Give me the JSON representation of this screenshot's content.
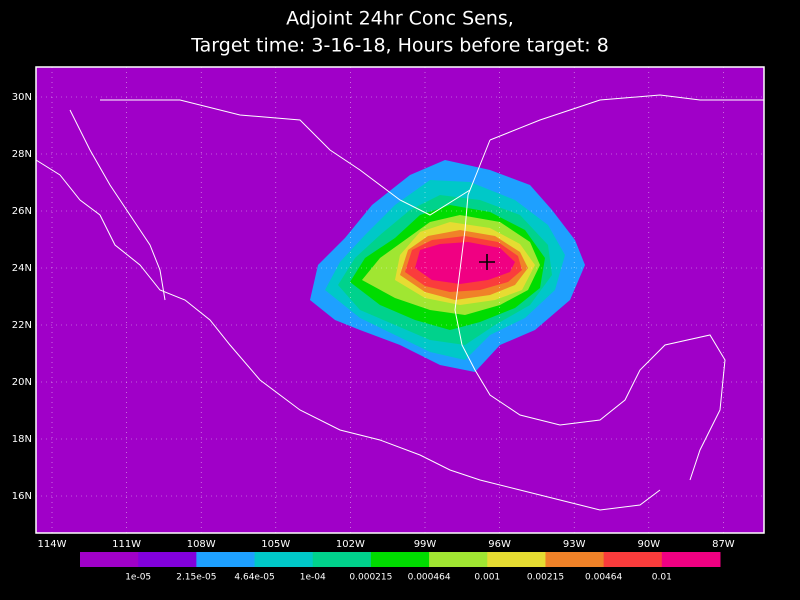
{
  "title": [
    "Adjoint 24hr Conc Sens,",
    "Target time: 3-16-18, Hours before target: 8"
  ],
  "lat_labels": [
    "30N",
    "28N",
    "26N",
    "24N",
    "22N",
    "20N",
    "18N",
    "16N"
  ],
  "lon_labels": [
    "114W",
    "111W",
    "108W",
    "105W",
    "102W",
    "99W",
    "96W",
    "93W",
    "90W",
    "87W"
  ],
  "colorbar": {
    "colors": [
      "#a000c8",
      "#8200dc",
      "#1ea0ff",
      "#00c8c8",
      "#00d28c",
      "#00dc00",
      "#a0e632",
      "#e6dc32",
      "#f08228",
      "#fa3c3c",
      "#f00082"
    ],
    "labels": [
      "1e-05",
      "2.15e-05",
      "4.64e-05",
      "1e-04",
      "0.000215",
      "0.000464",
      "0.001",
      "0.00215",
      "0.00464",
      "0.01"
    ]
  }
}
